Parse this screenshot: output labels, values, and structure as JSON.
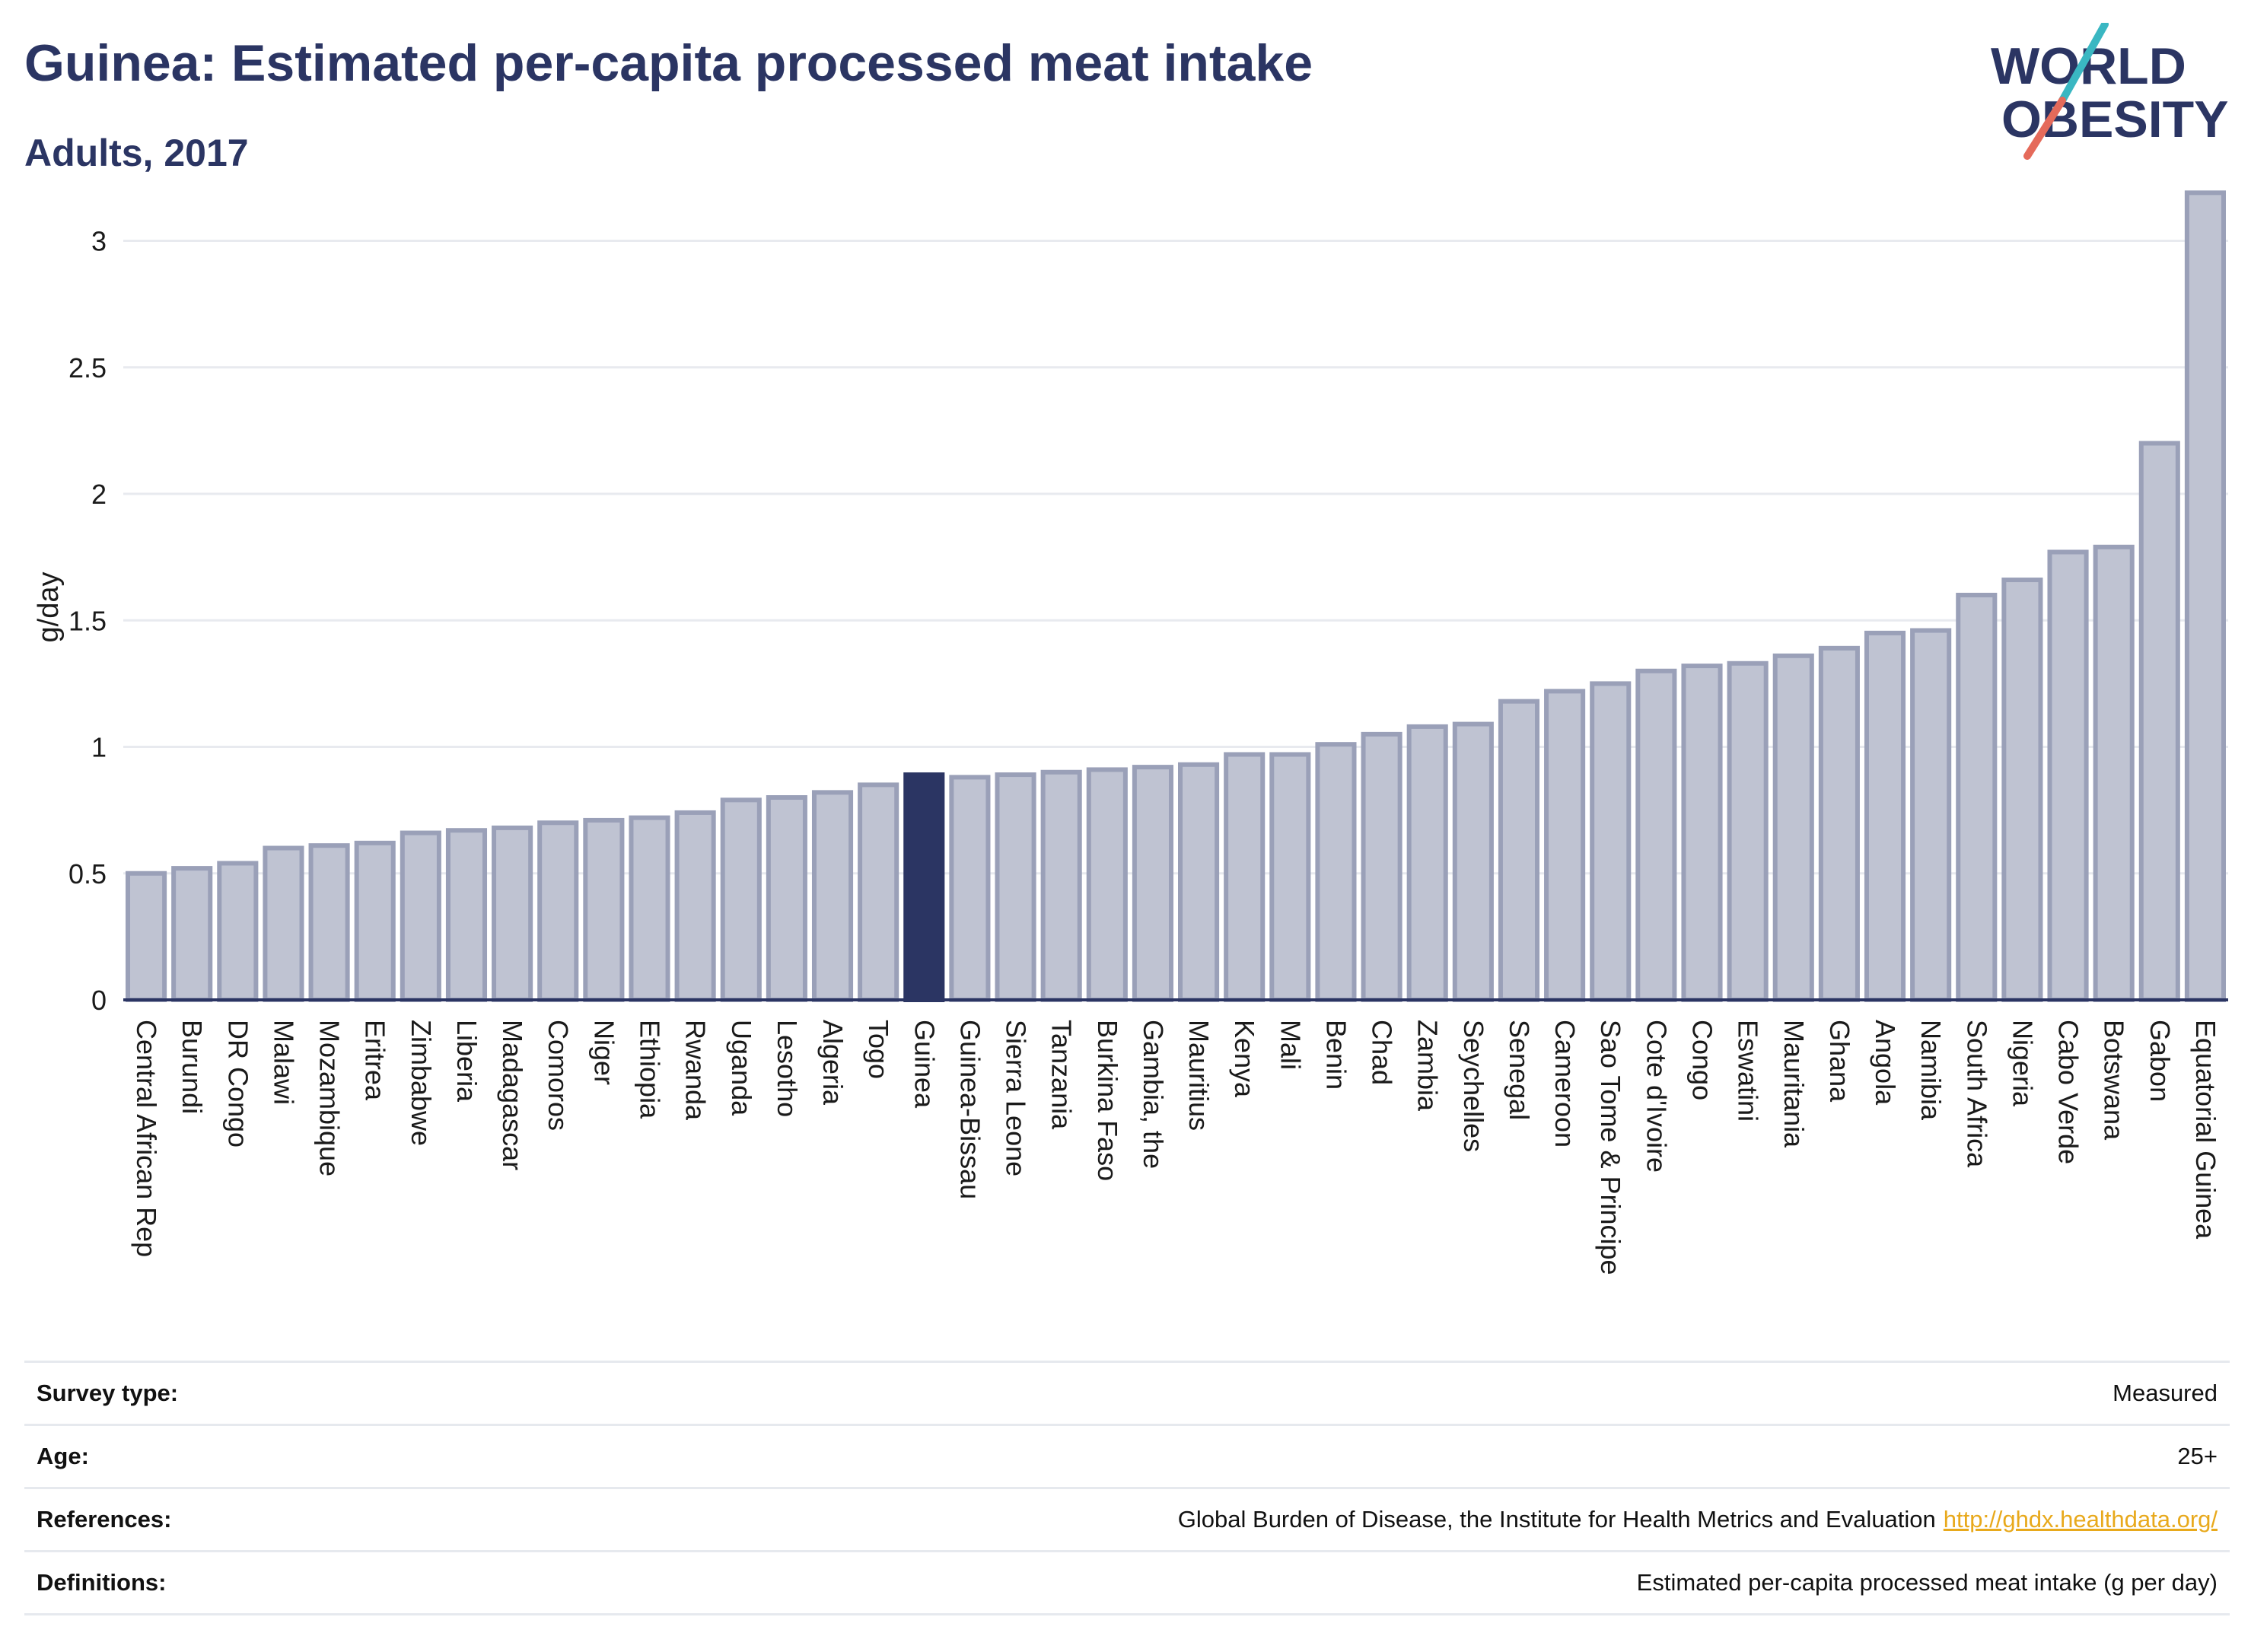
{
  "header": {
    "title": "Guinea: Estimated per-capita processed meat intake",
    "subtitle": "Adults, 2017"
  },
  "logo": {
    "line1": "WORLD",
    "line2": "OBESITY",
    "colors": {
      "text": "#2b3563",
      "slash_teal": "#3ab7c2",
      "slash_coral": "#e56a5a"
    }
  },
  "chart_data": {
    "type": "bar",
    "ylabel": "g/day",
    "xlabel": "",
    "ylim": [
      0,
      3.2
    ],
    "yticks": [
      0,
      0.5,
      1,
      1.5,
      2,
      2.5,
      3
    ],
    "highlight": "Guinea",
    "colors": {
      "bar": "#bfc3d2",
      "bar_border": "#9aa0b8",
      "highlight": "#2b3563",
      "grid": "#e8eaef",
      "axis": "#2b3563"
    },
    "grid": true,
    "categories": [
      "Central African Rep",
      "Burundi",
      "DR Congo",
      "Malawi",
      "Mozambique",
      "Eritrea",
      "Zimbabwe",
      "Liberia",
      "Madagascar",
      "Comoros",
      "Niger",
      "Ethiopia",
      "Rwanda",
      "Uganda",
      "Lesotho",
      "Algeria",
      "Togo",
      "Guinea",
      "Guinea-Bissau",
      "Sierra Leone",
      "Tanzania",
      "Burkina Faso",
      "Gambia, the",
      "Mauritius",
      "Kenya",
      "Mali",
      "Benin",
      "Chad",
      "Zambia",
      "Seychelles",
      "Senegal",
      "Cameroon",
      "Sao Tome & Principe",
      "Cote d'Ivoire",
      "Congo",
      "Eswatini",
      "Mauritania",
      "Ghana",
      "Angola",
      "Namibia",
      "South Africa",
      "Nigeria",
      "Cabo Verde",
      "Botswana",
      "Gabon",
      "Equatorial Guinea"
    ],
    "values": [
      0.5,
      0.52,
      0.54,
      0.6,
      0.61,
      0.62,
      0.66,
      0.67,
      0.68,
      0.7,
      0.71,
      0.72,
      0.74,
      0.79,
      0.8,
      0.82,
      0.85,
      0.89,
      0.88,
      0.89,
      0.9,
      0.91,
      0.92,
      0.93,
      0.97,
      0.97,
      1.01,
      1.05,
      1.08,
      1.09,
      1.18,
      1.22,
      1.25,
      1.3,
      1.32,
      1.33,
      1.36,
      1.39,
      1.45,
      1.46,
      1.6,
      1.66,
      1.77,
      1.79,
      2.2,
      3.19
    ]
  },
  "meta": {
    "rows": [
      {
        "label": "Survey type:",
        "value": "Measured"
      },
      {
        "label": "Age:",
        "value": "25+"
      },
      {
        "label": "References:",
        "value": "Global Burden of Disease, the Institute for Health Metrics and Evaluation",
        "link": "http://ghdx.healthdata.org/"
      },
      {
        "label": "Definitions:",
        "value": "Estimated per-capita processed meat intake (g per day)"
      }
    ]
  }
}
